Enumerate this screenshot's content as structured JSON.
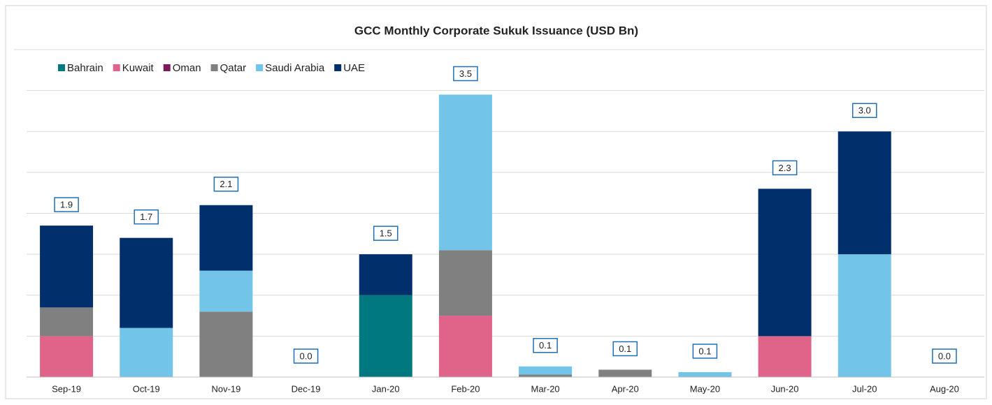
{
  "chart_data": {
    "type": "stacked_bar",
    "title": "GCC Monthly Corporate Sukuk Issuance (USD Bn)",
    "categories": [
      "Sep-19",
      "Oct-19",
      "Nov-19",
      "Dec-19",
      "Jan-20",
      "Feb-20",
      "Mar-20",
      "Apr-20",
      "May-20",
      "Jun-20",
      "Jul-20",
      "Aug-20"
    ],
    "series": [
      {
        "name": "Bahrain",
        "color": "#00787f",
        "values": [
          0,
          0,
          0,
          0,
          1.0,
          0,
          0,
          0,
          0,
          0,
          0,
          0
        ]
      },
      {
        "name": "Kuwait",
        "color": "#e0648a",
        "values": [
          0.5,
          0,
          0,
          0,
          0,
          0.75,
          0,
          0,
          0,
          0.5,
          0,
          0
        ]
      },
      {
        "name": "Oman",
        "color": "#7b1a5a",
        "values": [
          0,
          0,
          0,
          0,
          0,
          0,
          0,
          0,
          0,
          0,
          0,
          0
        ]
      },
      {
        "name": "Qatar",
        "color": "#808080",
        "values": [
          0.35,
          0,
          0.8,
          0,
          0,
          0.8,
          0.03,
          0.09,
          0,
          0,
          0,
          0
        ]
      },
      {
        "name": "Saudi Arabia",
        "color": "#72c5e8",
        "values": [
          0,
          0.6,
          0.5,
          0,
          0,
          1.9,
          0.1,
          0,
          0.06,
          0,
          1.5,
          0
        ]
      },
      {
        "name": "UAE",
        "color": "#002f6c",
        "values": [
          1.0,
          1.1,
          0.8,
          0,
          0.5,
          0,
          0,
          0,
          0,
          1.8,
          1.5,
          0
        ]
      }
    ],
    "totals": {
      "values": [
        1.9,
        1.7,
        2.1,
        0,
        1.5,
        3.5,
        0.1,
        0.1,
        0.1,
        2.3,
        3.0,
        0
      ],
      "value_labels": [
        "1.9",
        "1.7",
        "2.1",
        "0.0",
        "1.5",
        "3.5",
        "0.1",
        "0.1",
        "0.1",
        "2.3",
        "3.0",
        "0.0"
      ]
    },
    "ylim": [
      0,
      4
    ],
    "yticks": [
      0,
      0.5,
      1,
      1.5,
      2,
      2.5,
      3,
      3.5,
      4
    ],
    "grid": true,
    "legend": "top-left"
  }
}
